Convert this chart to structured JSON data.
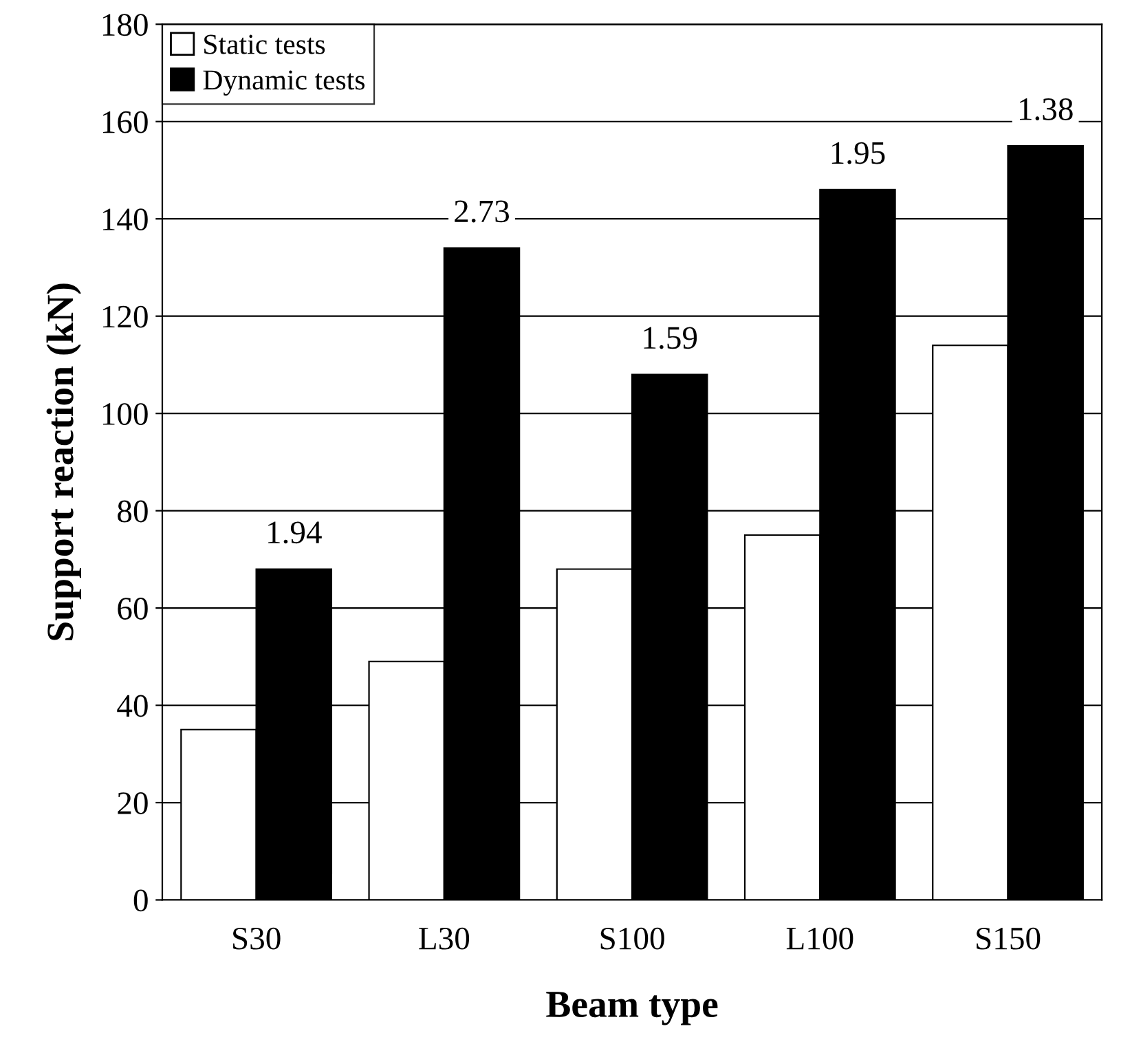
{
  "chart_data": {
    "type": "bar",
    "xlabel": "Beam type",
    "ylabel": "Support reaction (kN)",
    "categories": [
      "S30",
      "L30",
      "S100",
      "L100",
      "S150"
    ],
    "series": [
      {
        "name": "Static tests",
        "color": "#ffffff",
        "values": [
          35,
          49,
          68,
          75,
          114
        ]
      },
      {
        "name": "Dynamic tests",
        "color": "#000000",
        "values": [
          68,
          134,
          108,
          146,
          155
        ]
      }
    ],
    "annotations": [
      {
        "text": "1.94",
        "x": "S30",
        "y": 68
      },
      {
        "text": "2.73",
        "x": "L30",
        "y": 134
      },
      {
        "text": "1.59",
        "x": "S100",
        "y": 108
      },
      {
        "text": "1.95",
        "x": "L100",
        "y": 146
      },
      {
        "text": "1.38",
        "x": "S150",
        "y": 155
      }
    ],
    "ylim": [
      0,
      180
    ],
    "yticks": [
      0,
      20,
      40,
      60,
      80,
      100,
      120,
      140,
      160,
      180
    ],
    "grid": "y",
    "legend": "top left"
  }
}
